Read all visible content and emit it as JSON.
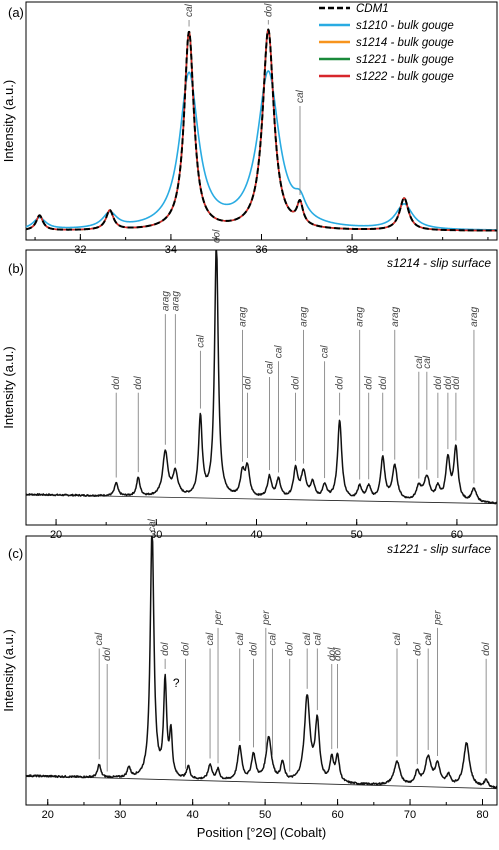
{
  "chart_data": [
    {
      "panel": "(a)",
      "type": "line",
      "ylabel": "Intensity (a.u.)",
      "xlim": [
        30.8,
        41.2
      ],
      "xticks": [
        32,
        34,
        36,
        38
      ],
      "legend": {
        "placement": "top-right"
      },
      "series": [
        {
          "name": "CDM1",
          "color": "#000000",
          "dash": true
        },
        {
          "name": "s1210 - bulk gouge",
          "color": "#29abe2"
        },
        {
          "name": "s1214 - bulk gouge",
          "color": "#f7941d"
        },
        {
          "name": "s1221 - bulk gouge",
          "color": "#1a8a3a"
        },
        {
          "name": "s1222 - bulk gouge",
          "color": "#d7262b"
        }
      ],
      "peaks": [
        {
          "x": 31.1,
          "h": 0.07,
          "w": 0.09
        },
        {
          "x": 32.65,
          "h": 0.09,
          "w": 0.1
        },
        {
          "x": 34.4,
          "h": 0.92,
          "w": 0.13
        },
        {
          "x": 36.15,
          "h": 0.93,
          "w": 0.15
        },
        {
          "x": 36.85,
          "h": 0.1,
          "w": 0.08
        },
        {
          "x": 39.15,
          "h": 0.15,
          "w": 0.12
        }
      ],
      "annotations": [
        {
          "label": "cal",
          "x": 34.4,
          "y": 1.0
        },
        {
          "label": "dol",
          "x": 36.15,
          "y": 1.0
        },
        {
          "label": "cal",
          "x": 36.85,
          "y": 0.6
        }
      ]
    },
    {
      "panel": "(b)",
      "type": "line",
      "subtitle": "s1214 - slip surface",
      "ylabel": "Intensity (a.u.)",
      "xlim": [
        17,
        64
      ],
      "xticks": [
        20,
        30,
        40,
        50,
        60
      ],
      "peaks": [
        {
          "x": 26.0,
          "h": 0.05,
          "w": 0.2
        },
        {
          "x": 28.2,
          "h": 0.07,
          "w": 0.2
        },
        {
          "x": 30.9,
          "h": 0.17,
          "w": 0.3
        },
        {
          "x": 31.9,
          "h": 0.09,
          "w": 0.3
        },
        {
          "x": 34.4,
          "h": 0.3,
          "w": 0.22
        },
        {
          "x": 36.0,
          "h": 0.97,
          "w": 0.22
        },
        {
          "x": 38.6,
          "h": 0.09,
          "w": 0.25
        },
        {
          "x": 39.1,
          "h": 0.11,
          "w": 0.25
        },
        {
          "x": 41.3,
          "h": 0.08,
          "w": 0.25
        },
        {
          "x": 42.2,
          "h": 0.07,
          "w": 0.25
        },
        {
          "x": 43.9,
          "h": 0.11,
          "w": 0.25
        },
        {
          "x": 44.7,
          "h": 0.1,
          "w": 0.3
        },
        {
          "x": 45.6,
          "h": 0.06,
          "w": 0.25
        },
        {
          "x": 46.8,
          "h": 0.05,
          "w": 0.25
        },
        {
          "x": 48.3,
          "h": 0.3,
          "w": 0.25
        },
        {
          "x": 50.3,
          "h": 0.05,
          "w": 0.25
        },
        {
          "x": 51.2,
          "h": 0.05,
          "w": 0.25
        },
        {
          "x": 52.6,
          "h": 0.16,
          "w": 0.25
        },
        {
          "x": 53.8,
          "h": 0.13,
          "w": 0.3
        },
        {
          "x": 56.2,
          "h": 0.05,
          "w": 0.3
        },
        {
          "x": 57.0,
          "h": 0.09,
          "w": 0.35
        },
        {
          "x": 58.1,
          "h": 0.05,
          "w": 0.25
        },
        {
          "x": 59.1,
          "h": 0.16,
          "w": 0.25
        },
        {
          "x": 59.9,
          "h": 0.2,
          "w": 0.25
        },
        {
          "x": 61.7,
          "h": 0.05,
          "w": 0.3
        }
      ],
      "annotations": [
        {
          "label": "dol",
          "x": 26.0,
          "y": 0.44
        },
        {
          "label": "dol",
          "x": 28.2,
          "y": 0.44
        },
        {
          "label": "arag",
          "x": 30.9,
          "y": 0.74
        },
        {
          "label": "arag",
          "x": 31.9,
          "y": 0.74
        },
        {
          "label": "cal",
          "x": 34.4,
          "y": 0.6
        },
        {
          "label": "dol",
          "x": 36.0,
          "y": 1.0
        },
        {
          "label": "arag",
          "x": 38.6,
          "y": 0.68
        },
        {
          "label": "dol",
          "x": 39.1,
          "y": 0.44
        },
        {
          "label": "cal",
          "x": 41.3,
          "y": 0.5
        },
        {
          "label": "cal",
          "x": 42.2,
          "y": 0.56
        },
        {
          "label": "dol",
          "x": 43.9,
          "y": 0.44
        },
        {
          "label": "arag",
          "x": 44.7,
          "y": 0.68
        },
        {
          "label": "cal",
          "x": 46.8,
          "y": 0.56
        },
        {
          "label": "dol",
          "x": 48.3,
          "y": 0.44
        },
        {
          "label": "arag",
          "x": 50.3,
          "y": 0.68
        },
        {
          "label": "dol",
          "x": 51.2,
          "y": 0.44
        },
        {
          "label": "dol",
          "x": 52.6,
          "y": 0.44
        },
        {
          "label": "arag",
          "x": 53.8,
          "y": 0.68
        },
        {
          "label": "cal",
          "x": 56.2,
          "y": 0.52
        },
        {
          "label": "cal",
          "x": 57.0,
          "y": 0.52
        },
        {
          "label": "dol",
          "x": 58.1,
          "y": 0.44
        },
        {
          "label": "dol",
          "x": 59.1,
          "y": 0.44
        },
        {
          "label": "dol",
          "x": 59.9,
          "y": 0.44
        },
        {
          "label": "arag",
          "x": 61.7,
          "y": 0.68
        }
      ]
    },
    {
      "panel": "(c)",
      "type": "line",
      "subtitle": "s1221 - slip surface",
      "ylabel": "Intensity (a.u.)",
      "xlabel": "Position [°2Θ] (Cobalt)",
      "xlim": [
        17,
        82
      ],
      "xticks": [
        20,
        30,
        40,
        50,
        60,
        70,
        80
      ],
      "peaks": [
        {
          "x": 27.1,
          "h": 0.05,
          "w": 0.25
        },
        {
          "x": 31.2,
          "h": 0.04,
          "w": 0.25
        },
        {
          "x": 34.4,
          "h": 0.97,
          "w": 0.3
        },
        {
          "x": 36.2,
          "h": 0.37,
          "w": 0.25
        },
        {
          "x": 37.0,
          "h": 0.17,
          "w": 0.22
        },
        {
          "x": 39.4,
          "h": 0.05,
          "w": 0.25
        },
        {
          "x": 42.4,
          "h": 0.06,
          "w": 0.3
        },
        {
          "x": 43.5,
          "h": 0.04,
          "w": 0.25
        },
        {
          "x": 46.5,
          "h": 0.13,
          "w": 0.35
        },
        {
          "x": 48.4,
          "h": 0.1,
          "w": 0.35
        },
        {
          "x": 50.5,
          "h": 0.17,
          "w": 0.45
        },
        {
          "x": 52.4,
          "h": 0.07,
          "w": 0.3
        },
        {
          "x": 55.8,
          "h": 0.33,
          "w": 0.45
        },
        {
          "x": 57.2,
          "h": 0.23,
          "w": 0.35
        },
        {
          "x": 59.2,
          "h": 0.09,
          "w": 0.3
        },
        {
          "x": 60.0,
          "h": 0.1,
          "w": 0.3
        },
        {
          "x": 68.2,
          "h": 0.09,
          "w": 0.5
        },
        {
          "x": 71.0,
          "h": 0.05,
          "w": 0.35
        },
        {
          "x": 72.5,
          "h": 0.11,
          "w": 0.5
        },
        {
          "x": 73.8,
          "h": 0.08,
          "w": 0.4
        },
        {
          "x": 75.3,
          "h": 0.04,
          "w": 0.35
        },
        {
          "x": 77.8,
          "h": 0.17,
          "w": 0.5
        },
        {
          "x": 80.5,
          "h": 0.03,
          "w": 0.3
        }
      ],
      "annotations": [
        {
          "label": "cal",
          "x": 27.1,
          "y": 0.56
        },
        {
          "label": "dol",
          "x": 28.2,
          "y": 0.5
        },
        {
          "label": "cal",
          "x": 34.4,
          "y": 1.0
        },
        {
          "label": "dol",
          "x": 36.2,
          "y": 0.52
        },
        {
          "label": "dol",
          "x": 39.0,
          "y": 0.52
        },
        {
          "label": "cal",
          "x": 42.4,
          "y": 0.56
        },
        {
          "label": "per",
          "x": 43.5,
          "y": 0.64
        },
        {
          "label": "cal",
          "x": 46.5,
          "y": 0.56
        },
        {
          "label": "dol",
          "x": 48.4,
          "y": 0.52
        },
        {
          "label": "per",
          "x": 50.1,
          "y": 0.64
        },
        {
          "label": "cal",
          "x": 51.0,
          "y": 0.56
        },
        {
          "label": "dol",
          "x": 53.4,
          "y": 0.52
        },
        {
          "label": "cal",
          "x": 55.8,
          "y": 0.56
        },
        {
          "label": "cal",
          "x": 57.2,
          "y": 0.56
        },
        {
          "label": "dol",
          "x": 59.2,
          "y": 0.5
        },
        {
          "label": "dol",
          "x": 60.0,
          "y": 0.5
        },
        {
          "label": "cal",
          "x": 68.2,
          "y": 0.56
        },
        {
          "label": "dol",
          "x": 71.0,
          "y": 0.52
        },
        {
          "label": "cal",
          "x": 72.5,
          "y": 0.56
        },
        {
          "label": "per",
          "x": 73.8,
          "y": 0.64
        },
        {
          "label": "dol",
          "x": 80.5,
          "y": 0.52
        }
      ],
      "question_mark": {
        "label": "?",
        "x": 37.0,
        "y": 0.4
      }
    }
  ]
}
